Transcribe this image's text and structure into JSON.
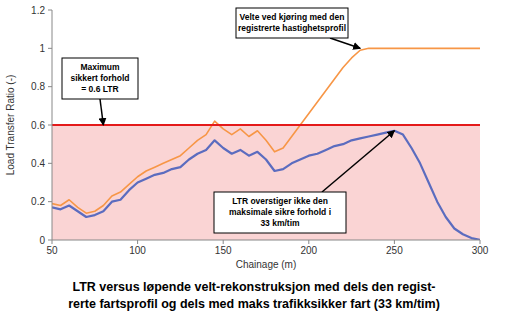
{
  "chart_data": {
    "type": "line",
    "caption": [
      "LTR versus løpende velt-rekonstruksjon med dels den regist-",
      "rerte fartsprofil og dels med maks trafikksikker fart (33 km/tim)"
    ],
    "x_label": "Chainage (m)",
    "y_label": "Load Transfer Ratio (-)",
    "xlim": [
      50,
      300
    ],
    "xticks": [
      50,
      100,
      150,
      200,
      250,
      300
    ],
    "ylim": [
      0,
      1.2
    ],
    "yticks": [
      0,
      0.2,
      0.4,
      0.6,
      0.8,
      1,
      1.2
    ],
    "grid": false,
    "threshold": {
      "value": 0.6,
      "color": "#e41a1a",
      "fill_color": "#fad4d4"
    },
    "x": [
      50,
      55,
      60,
      65,
      70,
      75,
      80,
      85,
      90,
      95,
      100,
      105,
      110,
      115,
      120,
      125,
      130,
      135,
      140,
      145,
      150,
      155,
      160,
      165,
      170,
      175,
      180,
      185,
      190,
      195,
      200,
      205,
      210,
      215,
      220,
      225,
      230,
      235,
      240,
      245,
      250,
      255,
      260,
      265,
      270,
      275,
      280,
      285,
      290,
      295,
      300
    ],
    "series": [
      {
        "color": "#f79646",
        "values": [
          0.19,
          0.18,
          0.21,
          0.17,
          0.14,
          0.15,
          0.18,
          0.23,
          0.25,
          0.29,
          0.33,
          0.36,
          0.38,
          0.4,
          0.42,
          0.44,
          0.48,
          0.52,
          0.55,
          0.62,
          0.58,
          0.55,
          0.58,
          0.54,
          0.57,
          0.52,
          0.46,
          0.48,
          0.54,
          0.6,
          0.66,
          0.72,
          0.78,
          0.84,
          0.9,
          0.95,
          0.99,
          1,
          1,
          1,
          1,
          1,
          1,
          1,
          1,
          1,
          1,
          1,
          1,
          1,
          1
        ]
      },
      {
        "color": "#5b6cbf",
        "values": [
          0.17,
          0.16,
          0.18,
          0.15,
          0.12,
          0.13,
          0.15,
          0.2,
          0.21,
          0.26,
          0.3,
          0.32,
          0.34,
          0.35,
          0.37,
          0.38,
          0.42,
          0.45,
          0.47,
          0.52,
          0.48,
          0.45,
          0.47,
          0.44,
          0.46,
          0.42,
          0.36,
          0.37,
          0.4,
          0.42,
          0.44,
          0.45,
          0.47,
          0.49,
          0.5,
          0.52,
          0.53,
          0.54,
          0.55,
          0.56,
          0.57,
          0.55,
          0.48,
          0.4,
          0.3,
          0.2,
          0.12,
          0.06,
          0.03,
          0.01,
          0
        ]
      }
    ],
    "annotations": [
      {
        "lines": [
          "Maximum",
          "sikkert forhold",
          "= 0.6 LTR"
        ],
        "x": 80,
        "y": 0.6
      },
      {
        "lines": [
          "Velte ved kjøring med den",
          "registrerte hastighetsprofil"
        ],
        "x": 230,
        "y": 1
      },
      {
        "lines": [
          "LTR overstiger ikke den",
          "maksimale sikre forhold i",
          "33 km/tim"
        ],
        "x": 250,
        "y": 0.57
      }
    ]
  }
}
